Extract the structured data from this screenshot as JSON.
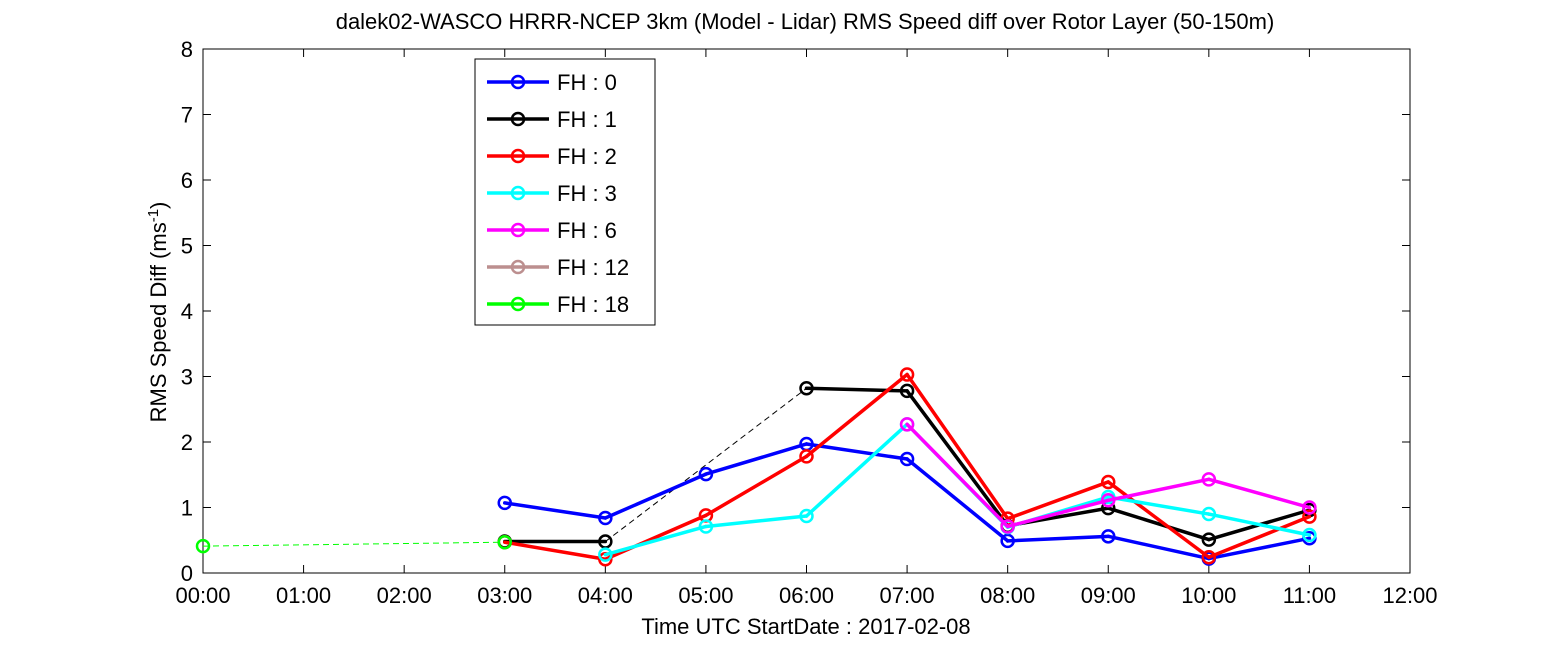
{
  "chart_data": {
    "type": "line",
    "title": "dalek02-WASCO HRRR-NCEP 3km (Model - Lidar) RMS Speed diff over Rotor Layer (50-150m)",
    "xlabel": "Time UTC    StartDate : 2017-02-08",
    "ylabel_main": "RMS Speed Diff (ms",
    "ylabel_sup": "-1",
    "ylabel_close": ")",
    "xlim": [
      0,
      12
    ],
    "ylim": [
      0,
      8
    ],
    "x_tick_values": [
      0,
      1,
      2,
      3,
      4,
      5,
      6,
      7,
      8,
      9,
      10,
      11,
      12
    ],
    "x_tick_labels": [
      "00:00",
      "01:00",
      "02:00",
      "03:00",
      "04:00",
      "05:00",
      "06:00",
      "07:00",
      "08:00",
      "09:00",
      "10:00",
      "11:00",
      "12:00"
    ],
    "y_tick_values": [
      0,
      1,
      2,
      3,
      4,
      5,
      6,
      7,
      8
    ],
    "y_tick_labels": [
      "0",
      "1",
      "2",
      "3",
      "4",
      "5",
      "6",
      "7",
      "8"
    ],
    "grid": false,
    "legend_position": "top-left",
    "series": [
      {
        "name": "FH : 0",
        "color": "#0000ff",
        "x": [
          3,
          4,
          5,
          6,
          7,
          8,
          9,
          10,
          11
        ],
        "y": [
          1.07,
          0.84,
          1.51,
          1.97,
          1.74,
          0.49,
          0.56,
          0.22,
          0.53
        ]
      },
      {
        "name": "FH : 1",
        "color": "#000000",
        "x": [
          3,
          4,
          6,
          7,
          8,
          9,
          10,
          11
        ],
        "y": [
          0.48,
          0.48,
          2.82,
          2.78,
          0.72,
          0.99,
          0.51,
          0.96
        ]
      },
      {
        "name": "FH : 2",
        "color": "#ff0000",
        "x": [
          3,
          4,
          5,
          6,
          7,
          8,
          9,
          10,
          11
        ],
        "y": [
          0.47,
          0.21,
          0.88,
          1.78,
          3.03,
          0.83,
          1.39,
          0.24,
          0.86
        ]
      },
      {
        "name": "FH : 3",
        "color": "#00ffff",
        "x": [
          4,
          5,
          6,
          7,
          8,
          9,
          10,
          11
        ],
        "y": [
          0.28,
          0.71,
          0.87,
          2.27,
          0.7,
          1.16,
          0.9,
          0.58
        ]
      },
      {
        "name": "FH : 6",
        "color": "#ff00ff",
        "x": [
          7,
          8,
          9,
          10,
          11
        ],
        "y": [
          2.27,
          0.71,
          1.11,
          1.43,
          1.0
        ]
      },
      {
        "name": "FH : 12",
        "color": "#bc8f8f",
        "x": [],
        "y": []
      },
      {
        "name": "FH : 18",
        "color": "#00ff00",
        "x": [
          0,
          3
        ],
        "y": [
          0.41,
          0.47
        ]
      }
    ],
    "gap_lines": [
      {
        "color": "#000000",
        "x": [
          4,
          6
        ],
        "y": [
          0.48,
          2.82
        ]
      },
      {
        "color": "#00ff00",
        "x": [
          0,
          3
        ],
        "y": [
          0.41,
          0.47
        ]
      }
    ]
  }
}
